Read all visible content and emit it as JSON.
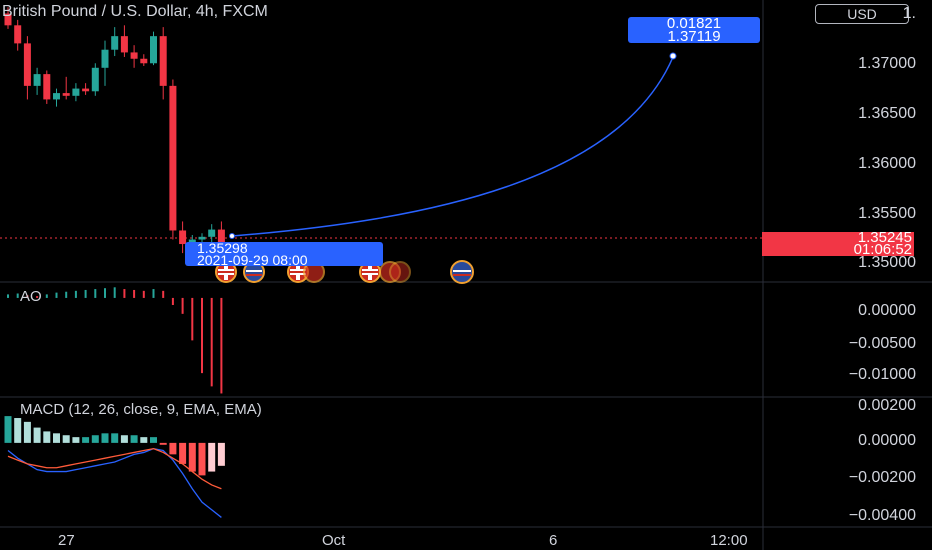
{
  "header": {
    "symbol_title": "British Pound / U.S. Dollar, 4h, FXCM",
    "currency_button": "USD"
  },
  "price_axis": {
    "labels": [
      "1.",
      "1.37000",
      "1.36500",
      "1.36000",
      "1.35500",
      "1.35000"
    ],
    "current_price": "1.35245",
    "countdown": "01:06:52"
  },
  "ao_pane": {
    "title": "AO",
    "labels": [
      "0.00000",
      "−0.00500",
      "−0.01000"
    ]
  },
  "macd_pane": {
    "title": "MACD (12, 26, close, 9, EMA, EMA)",
    "labels": [
      "0.00200",
      "0.00000",
      "−0.00200",
      "−0.00400"
    ]
  },
  "time_axis": {
    "labels": [
      "27",
      "Oct",
      "6",
      "12:00"
    ]
  },
  "projection": {
    "start_price": "1.35298",
    "start_datetime": "2021-09-29 08:00",
    "target_change": "0.01821",
    "target_price": "1.37119"
  },
  "colors": {
    "up": "#26a69a",
    "down": "#f23645",
    "projection": "#2962ff",
    "macd_line": "#2962ff",
    "signal_line": "#ff5b3a"
  },
  "event_markers": [
    "uk-flag",
    "us-flag",
    "uk-flag",
    "uk-flag",
    "uk-flag",
    "us-flag"
  ],
  "chart_data": {
    "type": "candlestick",
    "candles": [
      {
        "o": 1.3785,
        "h": 1.3792,
        "l": 1.3768,
        "c": 1.3772
      },
      {
        "o": 1.3772,
        "h": 1.3778,
        "l": 1.3744,
        "c": 1.3752
      },
      {
        "o": 1.3752,
        "h": 1.376,
        "l": 1.369,
        "c": 1.3705
      },
      {
        "o": 1.3705,
        "h": 1.3725,
        "l": 1.3695,
        "c": 1.3718
      },
      {
        "o": 1.3718,
        "h": 1.3722,
        "l": 1.3685,
        "c": 1.369
      },
      {
        "o": 1.369,
        "h": 1.3702,
        "l": 1.3682,
        "c": 1.3697
      },
      {
        "o": 1.3697,
        "h": 1.3715,
        "l": 1.369,
        "c": 1.3694
      },
      {
        "o": 1.3694,
        "h": 1.3708,
        "l": 1.3688,
        "c": 1.3702
      },
      {
        "o": 1.3702,
        "h": 1.3708,
        "l": 1.3695,
        "c": 1.3699
      },
      {
        "o": 1.3699,
        "h": 1.373,
        "l": 1.3694,
        "c": 1.3725
      },
      {
        "o": 1.3725,
        "h": 1.3755,
        "l": 1.3705,
        "c": 1.3745
      },
      {
        "o": 1.3745,
        "h": 1.377,
        "l": 1.3738,
        "c": 1.376
      },
      {
        "o": 1.376,
        "h": 1.3772,
        "l": 1.3737,
        "c": 1.3742
      },
      {
        "o": 1.3742,
        "h": 1.375,
        "l": 1.3725,
        "c": 1.3735
      },
      {
        "o": 1.3735,
        "h": 1.374,
        "l": 1.3727,
        "c": 1.373
      },
      {
        "o": 1.373,
        "h": 1.3765,
        "l": 1.3728,
        "c": 1.376
      },
      {
        "o": 1.376,
        "h": 1.377,
        "l": 1.369,
        "c": 1.3705
      },
      {
        "o": 1.3705,
        "h": 1.3712,
        "l": 1.3535,
        "c": 1.3545
      },
      {
        "o": 1.3545,
        "h": 1.3555,
        "l": 1.352,
        "c": 1.353
      },
      {
        "o": 1.353,
        "h": 1.354,
        "l": 1.3518,
        "c": 1.3535
      },
      {
        "o": 1.3535,
        "h": 1.3542,
        "l": 1.3524,
        "c": 1.3538
      },
      {
        "o": 1.3538,
        "h": 1.3552,
        "l": 1.3528,
        "c": 1.3546
      },
      {
        "o": 1.3546,
        "h": 1.3555,
        "l": 1.3524,
        "c": 1.3525
      }
    ],
    "ao_values": [
      0.0004,
      0.0005,
      0.0003,
      0.0002,
      0.0004,
      0.0006,
      0.0007,
      0.0008,
      0.0009,
      0.001,
      0.0011,
      0.0012,
      0.001,
      0.0009,
      0.0008,
      0.001,
      0.0008,
      -0.0008,
      -0.0018,
      -0.0048,
      -0.0085,
      -0.01,
      -0.0108
    ],
    "macd_hist": [
      0.0014,
      0.0013,
      0.0011,
      0.0008,
      0.0006,
      0.0005,
      0.0004,
      0.0003,
      0.0003,
      0.0004,
      0.0005,
      0.0005,
      0.0004,
      0.0004,
      0.0003,
      0.0003,
      -0.0001,
      -0.0006,
      -0.0011,
      -0.0015,
      -0.0017,
      -0.0015,
      -0.0012
    ],
    "macd_line": [
      -0.0004,
      -0.0008,
      -0.0011,
      -0.0014,
      -0.0015,
      -0.0015,
      -0.0015,
      -0.0014,
      -0.0013,
      -0.0012,
      -0.0011,
      -0.001,
      -0.0008,
      -0.0006,
      -0.0005,
      -0.0003,
      -0.0004,
      -0.0009,
      -0.0016,
      -0.0024,
      -0.0031,
      -0.0035,
      -0.0039
    ],
    "signal_line": [
      -0.0007,
      -0.0009,
      -0.0011,
      -0.0012,
      -0.0013,
      -0.0013,
      -0.0012,
      -0.0011,
      -0.001,
      -0.0009,
      -0.0008,
      -0.0007,
      -0.0006,
      -0.0005,
      -0.0004,
      -0.0003,
      -0.0005,
      -0.0008,
      -0.0011,
      -0.0015,
      -0.0019,
      -0.0022,
      -0.0024
    ],
    "price_range": [
      1.3488,
      1.38
    ],
    "ao_range": [
      -0.0112,
      0.0018
    ],
    "macd_range": [
      -0.0044,
      0.0024
    ]
  }
}
